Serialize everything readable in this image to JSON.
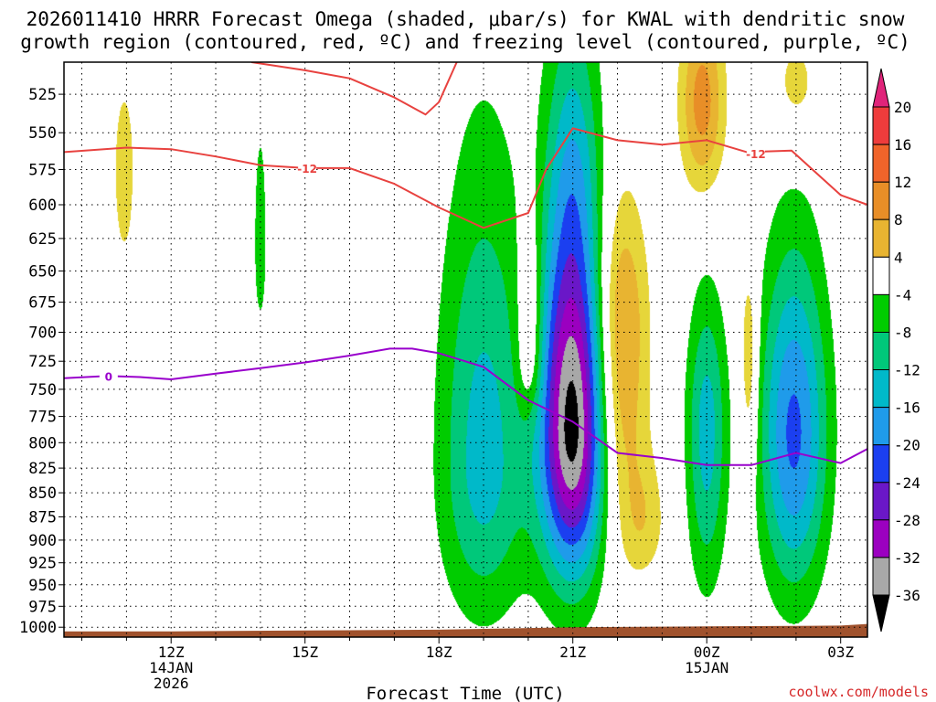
{
  "title": {
    "line1": "2026011410 HRRR Forecast Omega (shaded, μbar/s) for KWAL with dendritic snow",
    "line2": "growth region (contoured, red, ºC) and freezing level (contoured, purple, ºC)"
  },
  "credit": "coolwx.com/models",
  "colors": {
    "terrain": "#a0522d",
    "dgz_contour": "#e8423f",
    "freezing_contour": "#9900cc",
    "pos4": "#e6d63a",
    "pos8": "#e8b431",
    "pos12": "#e88e27",
    "pos16": "#f0642a",
    "pos20": "#ee3c3c",
    "pos_over": "#e0247a",
    "neg4": "#00cc00",
    "neg8": "#00c87a",
    "neg12": "#00b9c9",
    "neg16": "#1f9bea",
    "neg20": "#1b3ff0",
    "neg24": "#6a17c8",
    "neg28": "#9b00c0",
    "neg32": "#a8a8a8",
    "neg_over": "#000000"
  },
  "chart_data": {
    "type": "contour",
    "title": "2026011410 HRRR Forecast Omega (shaded, μbar/s) for KWAL with dendritic snow growth region (contoured, red, ºC) and freezing level (contoured, purple, ºC)",
    "xlabel": "Forecast Time (UTC)",
    "ylabel": "",
    "xlim_hours": [
      9.6,
      27.6
    ],
    "ylim_hpa": [
      505,
      1012
    ],
    "x_ticks": [
      {
        "hour": 12,
        "label": "12Z",
        "sub1": "14JAN",
        "sub2": "2026"
      },
      {
        "hour": 15,
        "label": "15Z",
        "sub1": "",
        "sub2": ""
      },
      {
        "hour": 18,
        "label": "18Z",
        "sub1": "",
        "sub2": ""
      },
      {
        "hour": 21,
        "label": "21Z",
        "sub1": "",
        "sub2": ""
      },
      {
        "hour": 24,
        "label": "00Z",
        "sub1": "15JAN",
        "sub2": ""
      },
      {
        "hour": 27,
        "label": "03Z",
        "sub1": "",
        "sub2": ""
      }
    ],
    "y_ticks": [
      525,
      550,
      575,
      600,
      625,
      650,
      675,
      700,
      725,
      750,
      775,
      800,
      825,
      850,
      875,
      900,
      925,
      950,
      975,
      1000
    ],
    "colorbar": {
      "boundaries": [
        20,
        16,
        12,
        8,
        4,
        -4,
        -8,
        -12,
        -16,
        -20,
        -24,
        -28,
        -32,
        -36
      ],
      "labels": [
        "20",
        "16",
        "12",
        "8",
        "4",
        "-4",
        "-8",
        "-12",
        "-16",
        "-20",
        "-24",
        "-28",
        "-32",
        "-36"
      ]
    },
    "omega_blobs": [
      {
        "name": "ascent-21z-core",
        "hour": 21.0,
        "hpa": 785,
        "dh": 0.75,
        "dp_up": 200,
        "dp_down": 150,
        "peak": -38
      },
      {
        "name": "ascent-21z-upper",
        "hour": 21.0,
        "hpa": 560,
        "dh": 0.55,
        "dp_up": 110,
        "dp_down": 80,
        "peak": -6
      },
      {
        "name": "ascent-19z-band",
        "hour": 19.0,
        "hpa": 820,
        "dh": 1.0,
        "dp_up": 260,
        "dp_down": 160,
        "peak": -14
      },
      {
        "name": "ascent-0030z-band",
        "hour": 24.0,
        "hpa": 785,
        "dh": 0.45,
        "dp_up": 120,
        "dp_down": 160,
        "peak": -14
      },
      {
        "name": "ascent-02z-band",
        "hour": 25.95,
        "hpa": 790,
        "dh": 0.75,
        "dp_up": 160,
        "dp_down": 160,
        "peak": -21
      },
      {
        "name": "ascent-14z-streak",
        "hour": 14.0,
        "hpa": 630,
        "dh": 0.18,
        "dp_up": 110,
        "dp_down": 80,
        "peak": -6
      },
      {
        "name": "descent-22z-band",
        "hour": 22.05,
        "hpa": 700,
        "dh": 0.6,
        "dp_up": 110,
        "dp_down": 180,
        "peak": 15
      },
      {
        "name": "descent-20z-band",
        "hour": 20.05,
        "hpa": 715,
        "dh": 0.3,
        "dp_up": 110,
        "dp_down": 60,
        "peak": 10
      },
      {
        "name": "descent-01z-streak",
        "hour": 24.95,
        "hpa": 720,
        "dh": 0.2,
        "dp_up": 80,
        "dp_down": 110,
        "peak": 9
      },
      {
        "name": "descent-23z-low",
        "hour": 22.6,
        "hpa": 880,
        "dh": 0.5,
        "dp_up": 70,
        "dp_down": 60,
        "peak": 6
      },
      {
        "name": "descent-00z-top",
        "hour": 23.9,
        "hpa": 530,
        "dh": 0.5,
        "dp_up": 60,
        "dp_down": 60,
        "peak": 14
      },
      {
        "name": "descent-02z-top",
        "hour": 26.0,
        "hpa": 520,
        "dh": 0.6,
        "dp_up": 40,
        "dp_down": 40,
        "peak": 6
      },
      {
        "name": "descent-11z-left",
        "hour": 10.95,
        "hpa": 575,
        "dh": 0.25,
        "dp_up": 60,
        "dp_down": 70,
        "peak": 7
      }
    ],
    "dgz_contours": [
      {
        "label": "-12",
        "label_hour": 15.05,
        "label_hpa": 574,
        "points": [
          [
            9.6,
            563
          ],
          [
            11.0,
            560
          ],
          [
            12.0,
            561
          ],
          [
            13.0,
            566
          ],
          [
            14.0,
            572
          ],
          [
            15.0,
            574
          ],
          [
            16.0,
            574
          ],
          [
            17.0,
            585
          ],
          [
            18.0,
            602
          ],
          [
            19.0,
            617
          ],
          [
            20.0,
            606
          ],
          [
            20.4,
            575
          ],
          [
            21.0,
            547
          ],
          [
            22.0,
            555
          ],
          [
            23.0,
            558
          ],
          [
            24.0,
            555
          ],
          [
            24.9,
            563
          ],
          [
            25.9,
            562
          ],
          [
            27.0,
            593
          ],
          [
            27.6,
            600
          ]
        ]
      },
      {
        "label": "",
        "label_hour": null,
        "label_hpa": null,
        "points": [
          [
            13.8,
            505
          ],
          [
            15.0,
            510
          ],
          [
            16.0,
            515
          ],
          [
            17.0,
            527
          ],
          [
            17.7,
            538
          ],
          [
            18.0,
            530
          ],
          [
            18.4,
            505
          ]
        ]
      }
    ],
    "freezing_contour": {
      "label": "0",
      "label_hour": 10.6,
      "label_hpa": 738,
      "points": [
        [
          9.6,
          740
        ],
        [
          10.6,
          738
        ],
        [
          11.3,
          739
        ],
        [
          12.0,
          741
        ],
        [
          13.0,
          736
        ],
        [
          14.0,
          731
        ],
        [
          15.0,
          726
        ],
        [
          16.0,
          720
        ],
        [
          16.9,
          714
        ],
        [
          17.4,
          714
        ],
        [
          18.0,
          718
        ],
        [
          19.0,
          730
        ],
        [
          20.0,
          760
        ],
        [
          21.0,
          780
        ],
        [
          22.0,
          810
        ],
        [
          23.0,
          815
        ],
        [
          24.0,
          822
        ],
        [
          25.0,
          822
        ],
        [
          26.0,
          810
        ],
        [
          27.0,
          820
        ],
        [
          27.6,
          806
        ]
      ]
    },
    "terrain_top_hpa": [
      [
        9.6,
        1005
      ],
      [
        12.0,
        1005
      ],
      [
        15.0,
        1004
      ],
      [
        18.0,
        1003
      ],
      [
        21.0,
        1000
      ],
      [
        24.0,
        999
      ],
      [
        27.0,
        998
      ],
      [
        27.6,
        996
      ]
    ]
  }
}
